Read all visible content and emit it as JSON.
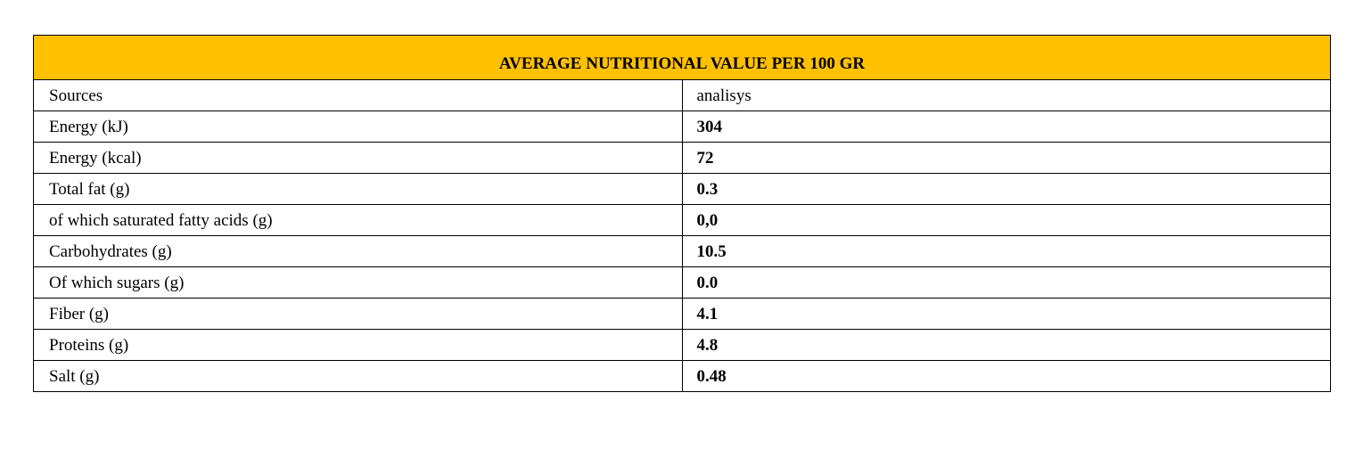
{
  "table": {
    "title": "AVERAGE NUTRITIONAL VALUE PER 100 GR",
    "colors": {
      "header_background": "#ffc000",
      "border": "#000000"
    },
    "rows": [
      {
        "label": "Sources",
        "value": "analisys"
      },
      {
        "label": "Energy  (kJ)",
        "value": "304"
      },
      {
        "label": "Energy  (kcal)",
        "value": "72"
      },
      {
        "label": "Total fat (g)",
        "value": "0.3"
      },
      {
        "label": "of which saturated fatty acids (g)",
        "value": "0,0"
      },
      {
        "label": "Carbohydrates (g)",
        "value": "10.5"
      },
      {
        "label": "Of which sugars (g)",
        "value": "0.0"
      },
      {
        "label": "Fiber (g)",
        "value": "4.1"
      },
      {
        "label": "Proteins (g)",
        "value": "4.8"
      },
      {
        "label": "Salt (g)",
        "value": "0.48"
      }
    ]
  }
}
